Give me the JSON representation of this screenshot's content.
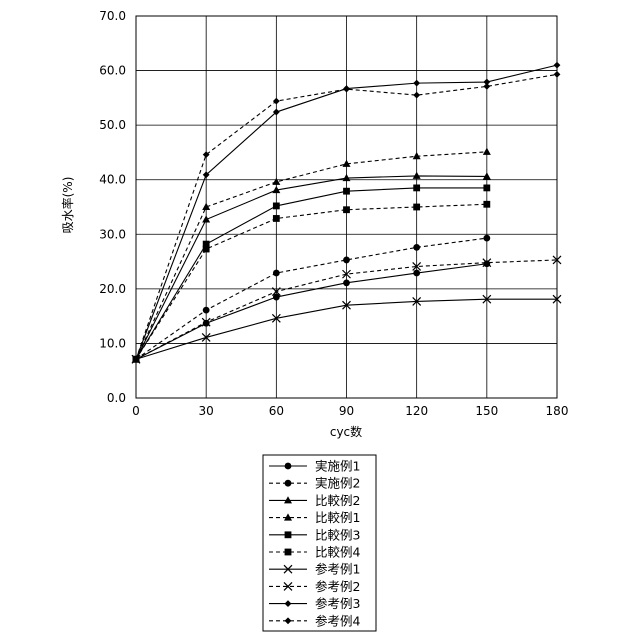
{
  "chart_data": {
    "type": "line",
    "title": "",
    "xlabel": "cyc数",
    "ylabel": "吸水率(%)",
    "x_ticks": [
      "0",
      "30",
      "60",
      "90",
      "120",
      "150",
      "180"
    ],
    "y_ticks": [
      "0.0",
      "10.0",
      "20.0",
      "30.0",
      "40.0",
      "50.0",
      "60.0",
      "70.0"
    ],
    "xlim": [
      0,
      180
    ],
    "ylim": [
      0,
      70
    ],
    "grid": true,
    "legend_position": "bottom-center",
    "series": [
      {
        "name": "実施例1",
        "marker": "circle",
        "dash": "solid",
        "x": [
          0,
          30,
          60,
          90,
          120,
          150
        ],
        "y": [
          7.1,
          13.7,
          18.5,
          21.1,
          22.9,
          24.6
        ]
      },
      {
        "name": "実施例2",
        "marker": "circle",
        "dash": "dashed",
        "x": [
          0,
          30,
          60,
          90,
          120,
          150
        ],
        "y": [
          7.1,
          16.1,
          22.9,
          25.3,
          27.6,
          29.3
        ]
      },
      {
        "name": "比較例2",
        "marker": "triangle",
        "dash": "solid",
        "x": [
          0,
          30,
          60,
          90,
          120,
          150
        ],
        "y": [
          7.1,
          32.7,
          38.1,
          40.3,
          40.7,
          40.6
        ]
      },
      {
        "name": "比較例1",
        "marker": "triangle",
        "dash": "dashed",
        "x": [
          0,
          30,
          60,
          90,
          120,
          150
        ],
        "y": [
          7.1,
          35.0,
          39.6,
          42.9,
          44.3,
          45.1
        ]
      },
      {
        "name": "比較例3",
        "marker": "square",
        "dash": "solid",
        "x": [
          0,
          30,
          60,
          90,
          120,
          150
        ],
        "y": [
          7.1,
          28.2,
          35.2,
          37.9,
          38.5,
          38.5
        ]
      },
      {
        "name": "比較例4",
        "marker": "square",
        "dash": "dashed",
        "x": [
          0,
          30,
          60,
          90,
          120,
          150
        ],
        "y": [
          7.1,
          27.3,
          32.9,
          34.5,
          35.0,
          35.5
        ]
      },
      {
        "name": "参考例1",
        "marker": "x",
        "dash": "solid",
        "x": [
          0,
          30,
          60,
          90,
          120,
          150,
          180
        ],
        "y": [
          7.1,
          11.1,
          14.6,
          17.0,
          17.7,
          18.1,
          18.1
        ]
      },
      {
        "name": "参考例2",
        "marker": "x",
        "dash": "dashed",
        "x": [
          0,
          30,
          60,
          90,
          120,
          150,
          180
        ],
        "y": [
          7.1,
          13.9,
          19.5,
          22.7,
          24.1,
          24.8,
          25.3
        ]
      },
      {
        "name": "参考例3",
        "marker": "diamond",
        "dash": "solid",
        "x": [
          0,
          30,
          60,
          90,
          120,
          150,
          180
        ],
        "y": [
          7.1,
          40.9,
          52.4,
          56.7,
          57.7,
          57.9,
          61.0
        ]
      },
      {
        "name": "参考例4",
        "marker": "diamond",
        "dash": "dashed",
        "x": [
          0,
          30,
          60,
          90,
          120,
          150,
          180
        ],
        "y": [
          7.1,
          44.6,
          54.4,
          56.6,
          55.5,
          57.1,
          59.3
        ]
      }
    ]
  }
}
